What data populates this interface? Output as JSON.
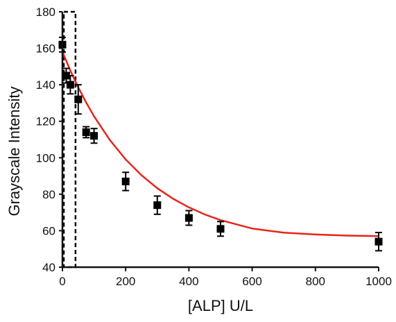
{
  "chart_data": {
    "type": "scatter",
    "title": "",
    "xlabel": "[ALP] U/L",
    "ylabel": "Grayscale Intensity",
    "xlim": [
      0,
      1000
    ],
    "ylim": [
      40,
      180
    ],
    "x_ticks": [
      0,
      200,
      400,
      600,
      800,
      1000
    ],
    "y_ticks": [
      40,
      60,
      80,
      100,
      120,
      140,
      160,
      180
    ],
    "grid": false,
    "legend": "none",
    "series": [
      {
        "marker": "square",
        "color": "#000000",
        "x": [
          0,
          12,
          25,
          50,
          75,
          100,
          200,
          300,
          400,
          500,
          1000
        ],
        "y": [
          162,
          145,
          140,
          132,
          114,
          112,
          87,
          74,
          67,
          61,
          54
        ],
        "err": [
          4,
          4,
          5,
          8,
          3,
          4,
          5,
          5,
          4,
          4,
          5
        ]
      }
    ],
    "fit": {
      "color": "#e8231a",
      "model": "exponential decay",
      "x": [
        0,
        25,
        50,
        75,
        100,
        150,
        200,
        250,
        300,
        350,
        400,
        450,
        500,
        600,
        700,
        800,
        900,
        1000
      ],
      "y": [
        158.0,
        147.8,
        138.6,
        130.3,
        122.7,
        109.7,
        99.1,
        90.4,
        83.3,
        77.5,
        72.8,
        68.9,
        65.8,
        61.2,
        58.9,
        57.9,
        57.3,
        57.0
      ]
    },
    "shaded_region": {
      "style": "dashed-box",
      "color": "#000000",
      "x_range": [
        0,
        37
      ],
      "y_range": [
        40,
        180
      ]
    }
  }
}
